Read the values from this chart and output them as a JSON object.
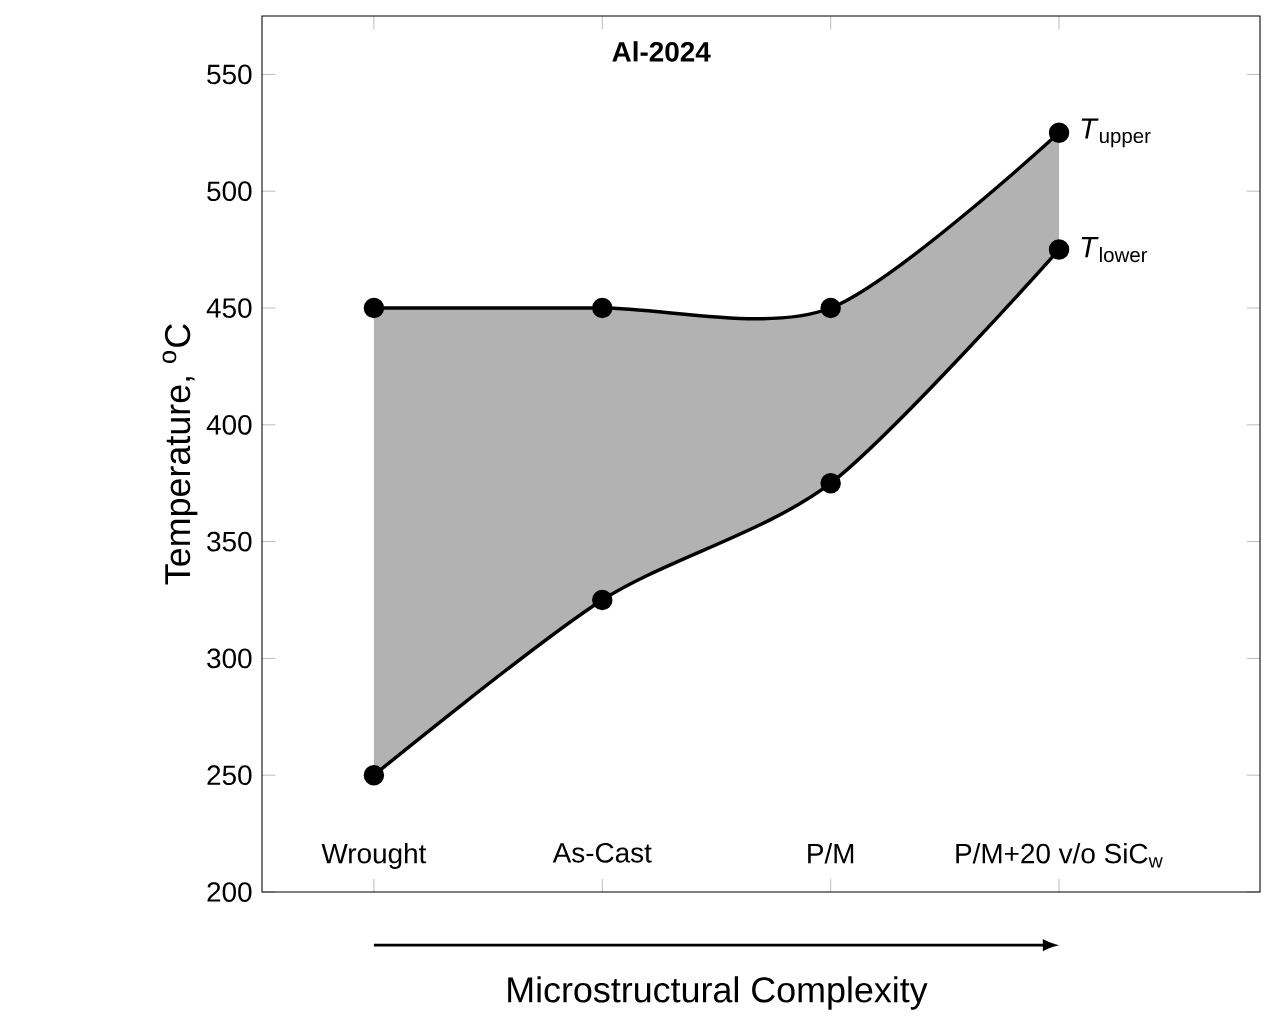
{
  "chart_data": {
    "type": "line",
    "title": "Al-2024",
    "xlabel": "Microstructural Complexity",
    "ylabel": "Temperature, $^{o}$C",
    "categories": [
      "Wrought",
      "As-Cast",
      "P/M",
      "P/M+20 v/o SiC$_{w}$"
    ],
    "series": [
      {
        "name": "*T*$_{upper}$",
        "color": "#000000",
        "values": [
          450,
          450,
          450,
          525
        ],
        "lower": [
          250,
          325,
          375,
          475
        ],
        "upper": [
          450,
          450,
          450,
          525
        ]
      },
      {
        "name": "*T*$_{lower}$",
        "color": "#000000",
        "values": [
          250,
          325,
          375,
          475
        ]
      }
    ],
    "ylim": [
      200,
      575
    ],
    "yticks": [
      200,
      250,
      300,
      350,
      400,
      450,
      500,
      550
    ],
    "marker": "circle",
    "line_style": "solid",
    "grid": false
  }
}
